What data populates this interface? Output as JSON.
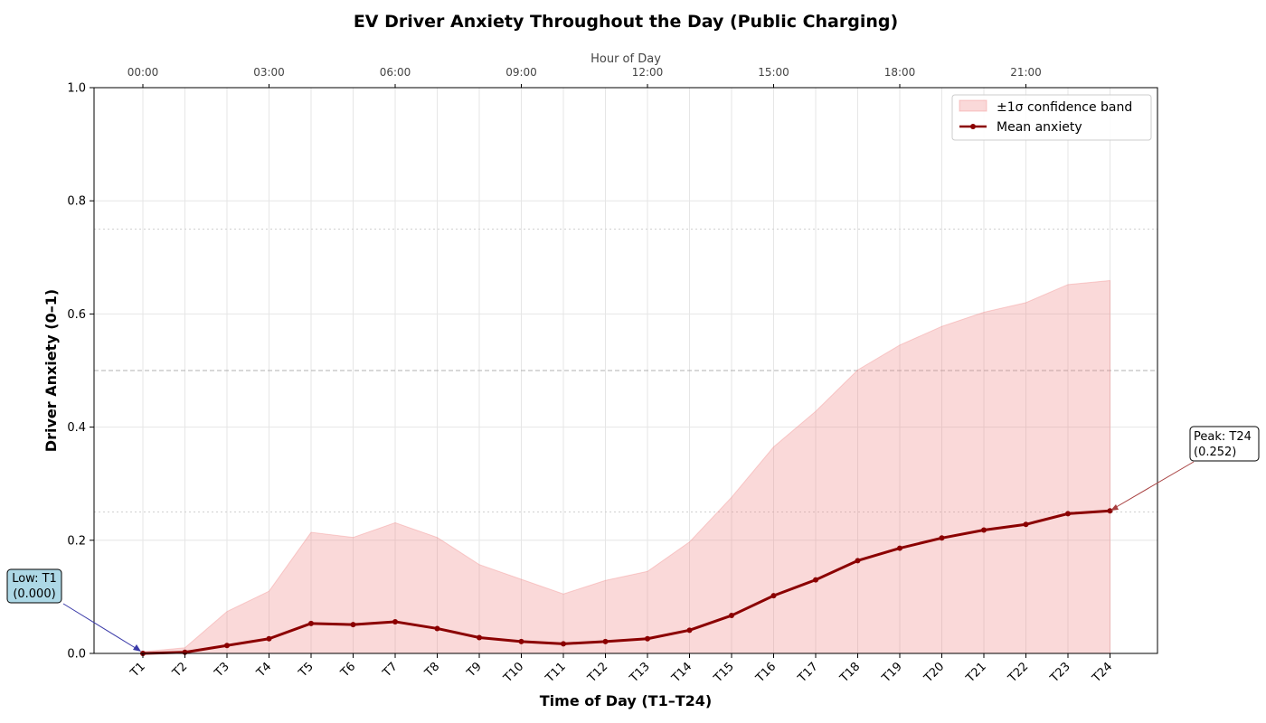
{
  "chart_data": {
    "type": "line",
    "title": "EV Driver Anxiety Throughout the Day (Public Charging)",
    "xlabel": "Time of Day (T1–T24)",
    "ylabel": "Driver Anxiety (0–1)",
    "top_xlabel": "Hour of Day",
    "categories": [
      "T1",
      "T2",
      "T3",
      "T4",
      "T5",
      "T6",
      "T7",
      "T8",
      "T9",
      "T10",
      "T11",
      "T12",
      "T13",
      "T14",
      "T15",
      "T16",
      "T17",
      "T18",
      "T19",
      "T20",
      "T21",
      "T22",
      "T23",
      "T24"
    ],
    "top_ticks": [
      {
        "index": 0,
        "label": "00:00"
      },
      {
        "index": 3,
        "label": "03:00"
      },
      {
        "index": 6,
        "label": "06:00"
      },
      {
        "index": 9,
        "label": "09:00"
      },
      {
        "index": 12,
        "label": "12:00"
      },
      {
        "index": 15,
        "label": "15:00"
      },
      {
        "index": 18,
        "label": "18:00"
      },
      {
        "index": 21,
        "label": "21:00"
      }
    ],
    "ylim": [
      0,
      1
    ],
    "yticks": [
      0.0,
      0.2,
      0.4,
      0.6,
      0.8,
      1.0
    ],
    "ytick_labels": [
      "0.0",
      "0.2",
      "0.4",
      "0.6",
      "0.8",
      "1.0"
    ],
    "reference_lines": [
      0.25,
      0.5,
      0.75
    ],
    "grid": true,
    "legend_position": "top-right",
    "series": [
      {
        "name": "Mean anxiety",
        "color": "#8b0000",
        "values": [
          0.0,
          0.002,
          0.014,
          0.026,
          0.053,
          0.051,
          0.056,
          0.044,
          0.028,
          0.021,
          0.017,
          0.021,
          0.026,
          0.041,
          0.067,
          0.102,
          0.13,
          0.164,
          0.186,
          0.204,
          0.218,
          0.228,
          0.247,
          0.252
        ]
      }
    ],
    "band": {
      "name": "±1σ confidence band",
      "color": "#f08080",
      "lower": [
        0,
        0,
        0,
        0,
        0,
        0,
        0,
        0,
        0,
        0,
        0,
        0,
        0,
        0,
        0,
        0,
        0,
        0,
        0,
        0,
        0,
        0,
        0,
        0
      ],
      "upper": [
        0.003,
        0.01,
        0.074,
        0.11,
        0.214,
        0.205,
        0.231,
        0.205,
        0.157,
        0.131,
        0.105,
        0.129,
        0.145,
        0.197,
        0.276,
        0.365,
        0.428,
        0.501,
        0.545,
        0.578,
        0.603,
        0.62,
        0.652,
        0.659
      ]
    },
    "annotations": [
      {
        "name": "low",
        "line1": "Low: T1",
        "line2": "(0.000)",
        "index": 0,
        "value": 0.0,
        "color": "#add8e6",
        "arrow": "#3a3aa8"
      },
      {
        "name": "peak",
        "line1": "Peak: T24",
        "line2": "(0.252)",
        "index": 23,
        "value": 0.252,
        "color": "#ffffff",
        "arrow": "#a84040"
      }
    ]
  }
}
